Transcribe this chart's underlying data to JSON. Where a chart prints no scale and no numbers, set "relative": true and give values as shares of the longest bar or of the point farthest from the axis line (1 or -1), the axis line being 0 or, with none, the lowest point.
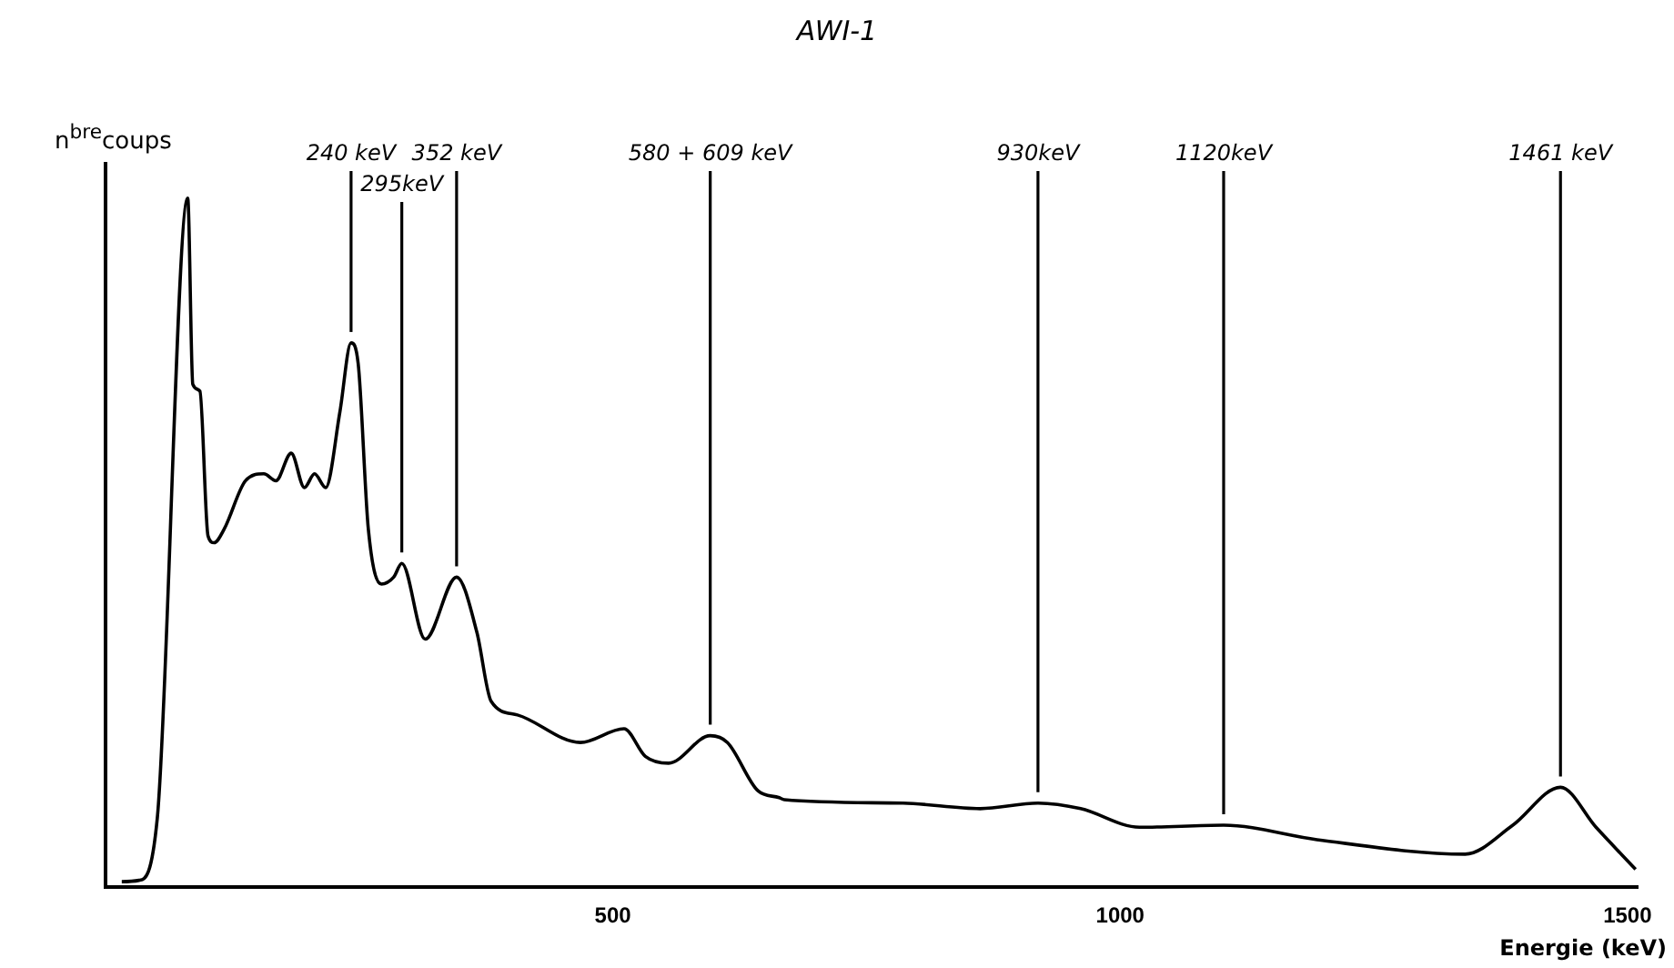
{
  "chart_data": {
    "type": "line",
    "title": "AWI-1",
    "xlabel": "Energie (keV)",
    "ylabel": "n$^{bre}$coups",
    "relative": true,
    "color": "#000000",
    "marker": "none",
    "line_style": "solid",
    "grid": false,
    "legend": false,
    "xlim": [
      0,
      1510
    ],
    "xticks": [
      500,
      1000,
      1500
    ],
    "x": [
      16,
      33,
      51,
      81,
      86,
      93,
      101,
      107,
      117,
      138,
      156,
      168,
      183,
      196,
      206,
      217,
      231,
      242,
      249,
      259,
      272,
      284,
      292,
      315,
      346,
      366,
      380,
      406,
      468,
      511,
      532,
      555,
      596,
      613,
      643,
      664,
      669,
      786,
      862,
      919,
      961,
      1019,
      1102,
      1194,
      1340,
      1387,
      1434,
      1469,
      1508
    ],
    "values": [
      0.008,
      0.01,
      0.1,
      1.0,
      0.73,
      0.72,
      0.51,
      0.5,
      0.52,
      0.59,
      0.6,
      0.59,
      0.63,
      0.58,
      0.6,
      0.58,
      0.69,
      0.79,
      0.76,
      0.52,
      0.44,
      0.45,
      0.47,
      0.36,
      0.45,
      0.37,
      0.27,
      0.25,
      0.21,
      0.23,
      0.19,
      0.18,
      0.22,
      0.21,
      0.14,
      0.13,
      0.127,
      0.122,
      0.114,
      0.122,
      0.114,
      0.087,
      0.09,
      0.069,
      0.048,
      0.09,
      0.145,
      0.087,
      0.026
    ],
    "annotations": [
      {
        "text": "240 keV",
        "x": 242,
        "y": 0.79
      },
      {
        "text": "295keV",
        "x": 292,
        "y": 0.47
      },
      {
        "text": "352 keV",
        "x": 346,
        "y": 0.45
      },
      {
        "text": "580 + 609 keV",
        "x": 596,
        "y": 0.22
      },
      {
        "text": "930keV",
        "x": 919,
        "y": 0.122
      },
      {
        "text": "1120keV",
        "x": 1102,
        "y": 0.09
      },
      {
        "text": "1461 keV",
        "x": 1434,
        "y": 0.145
      }
    ]
  }
}
